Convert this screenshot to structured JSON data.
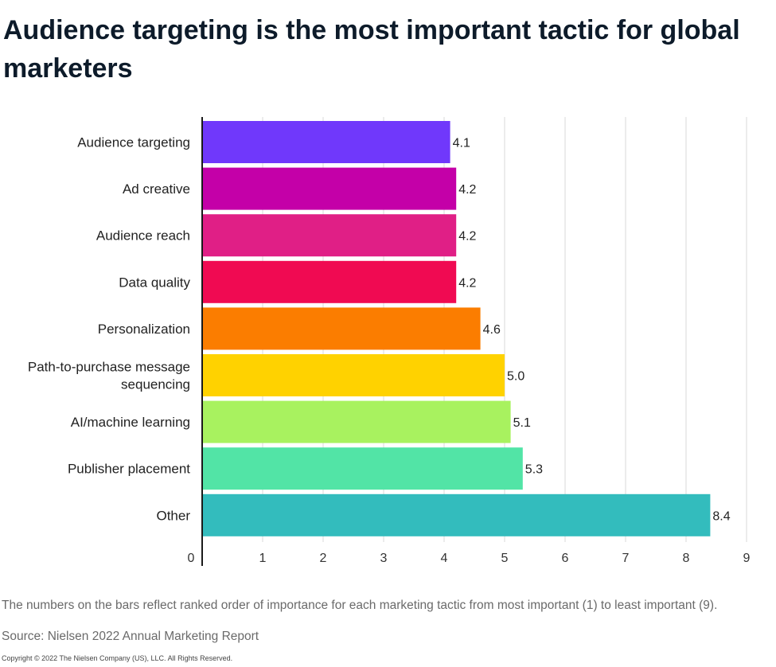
{
  "title": "Audience targeting is the most important tactic for global marketers",
  "note": "The numbers on the bars reflect ranked order of importance for each marketing tactic from most important (1) to least important (9).",
  "source": "Source: Nielsen 2022 Annual Marketing Report",
  "copyright": "Copyright © 2022 The Nielsen Company (US), LLC. All Rights Reserved.",
  "chart_data": {
    "type": "bar",
    "orientation": "horizontal",
    "title": "Audience targeting is the most important tactic for global marketers",
    "xlabel": "",
    "ylabel": "",
    "xlim": [
      0,
      9
    ],
    "xticks": [
      0,
      1,
      2,
      3,
      4,
      5,
      6,
      7,
      8,
      9
    ],
    "grid": true,
    "categories": [
      "Audience targeting",
      "Ad creative",
      "Audience reach",
      "Data quality",
      "Personalization",
      "Path-to-purchase message sequencing",
      "AI/machine learning",
      "Publisher placement",
      "Other"
    ],
    "category_lines": [
      [
        "Audience targeting"
      ],
      [
        "Ad creative"
      ],
      [
        "Audience reach"
      ],
      [
        "Data quality"
      ],
      [
        "Personalization"
      ],
      [
        "Path-to-purchase message",
        "sequencing"
      ],
      [
        "AI/machine learning"
      ],
      [
        "Publisher placement"
      ],
      [
        "Other"
      ]
    ],
    "values": [
      4.1,
      4.2,
      4.2,
      4.2,
      4.6,
      5.0,
      5.1,
      5.3,
      8.4
    ],
    "value_labels": [
      "4.1",
      "4.2",
      "4.2",
      "4.2",
      "4.6",
      "5.0",
      "5.1",
      "5.3",
      "8.4"
    ],
    "colors": [
      "#7038fb",
      "#c400a8",
      "#e01f86",
      "#f00a52",
      "#fb7d00",
      "#ffd200",
      "#a8f25f",
      "#52e4a6",
      "#33bcbd"
    ]
  }
}
